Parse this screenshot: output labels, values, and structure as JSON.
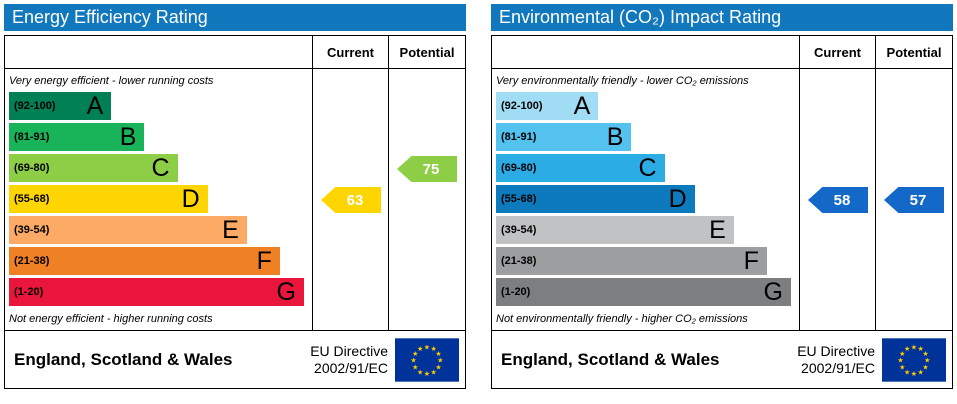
{
  "chart_data": [
    {
      "type": "bar",
      "variant": "epc-band-rating",
      "title": "Energy Efficiency Rating",
      "columns": {
        "current": "Current",
        "potential": "Potential"
      },
      "top_note": "Very energy efficient - lower running costs",
      "bottom_note": "Not energy efficient - higher running costs",
      "bands": [
        {
          "range": "(92-100)",
          "letter": "A",
          "color": "#008054"
        },
        {
          "range": "(81-91)",
          "letter": "B",
          "color": "#19b459"
        },
        {
          "range": "(69-80)",
          "letter": "C",
          "color": "#8dce46"
        },
        {
          "range": "(55-68)",
          "letter": "D",
          "color": "#ffd500"
        },
        {
          "range": "(39-54)",
          "letter": "E",
          "color": "#fcaa65"
        },
        {
          "range": "(21-38)",
          "letter": "F",
          "color": "#ef8023"
        },
        {
          "range": "(1-20)",
          "letter": "G",
          "color": "#e9153b"
        }
      ],
      "current": {
        "value": 63,
        "band": "D",
        "color": "#ffd500"
      },
      "potential": {
        "value": 75,
        "band": "C",
        "color": "#8dce46"
      },
      "footer": {
        "region": "England, Scotland & Wales",
        "directive_line1": "EU Directive",
        "directive_line2": "2002/91/EC"
      },
      "flag_colors": {
        "background": "#003399",
        "stars": "#ffcc00"
      }
    },
    {
      "type": "bar",
      "variant": "epc-band-rating",
      "title": "Environmental (CO₂) Impact Rating",
      "columns": {
        "current": "Current",
        "potential": "Potential"
      },
      "top_note": "Very environmentally friendly - lower CO₂ emissions",
      "bottom_note": "Not environmentally friendly - higher CO₂ emissions",
      "bands": [
        {
          "range": "(92-100)",
          "letter": "A",
          "color": "#a0dcf4"
        },
        {
          "range": "(81-91)",
          "letter": "B",
          "color": "#53c2ef"
        },
        {
          "range": "(69-80)",
          "letter": "C",
          "color": "#2cace4"
        },
        {
          "range": "(55-68)",
          "letter": "D",
          "color": "#0c7abc"
        },
        {
          "range": "(39-54)",
          "letter": "E",
          "color": "#c1c2c3"
        },
        {
          "range": "(21-38)",
          "letter": "F",
          "color": "#9c9e9f"
        },
        {
          "range": "(1-20)",
          "letter": "G",
          "color": "#7c7e80"
        }
      ],
      "current": {
        "value": 58,
        "band": "D",
        "color": "#1368c8"
      },
      "potential": {
        "value": 57,
        "band": "D",
        "color": "#1368c8"
      },
      "footer": {
        "region": "England, Scotland & Wales",
        "directive_line1": "EU Directive",
        "directive_line2": "2002/91/EC"
      },
      "flag_colors": {
        "background": "#003399",
        "stars": "#ffcc00"
      }
    }
  ]
}
